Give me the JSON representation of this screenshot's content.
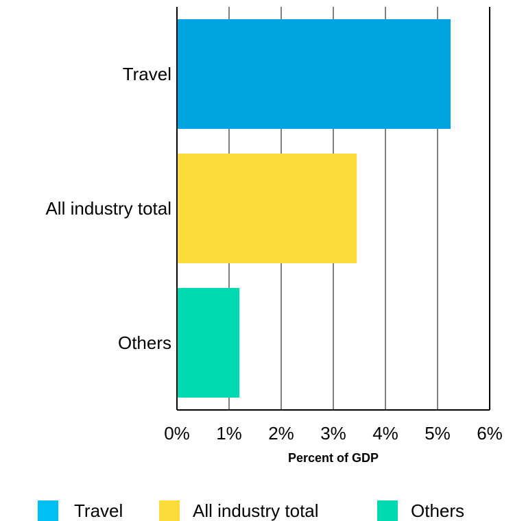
{
  "chart_data": {
    "type": "bar",
    "orientation": "horizontal",
    "categories": [
      "Travel",
      "All industry total",
      "Others"
    ],
    "values": [
      5.25,
      3.45,
      1.2
    ],
    "colors": [
      "#00A5E0",
      "#FDDB3A",
      "#00D9B2"
    ],
    "xlabel": "Percent of GDP",
    "xlim": [
      0,
      6
    ],
    "x_ticks": [
      "0%",
      "1%",
      "2%",
      "3%",
      "4%",
      "5%",
      "6%"
    ],
    "grid": "vertical",
    "legend": {
      "position": "bottom",
      "entries": [
        {
          "label": "Travel",
          "color": "#00BFF3"
        },
        {
          "label": "All industry total",
          "color": "#FDDB3A"
        },
        {
          "label": "Others",
          "color": "#00D9B2"
        }
      ]
    }
  }
}
